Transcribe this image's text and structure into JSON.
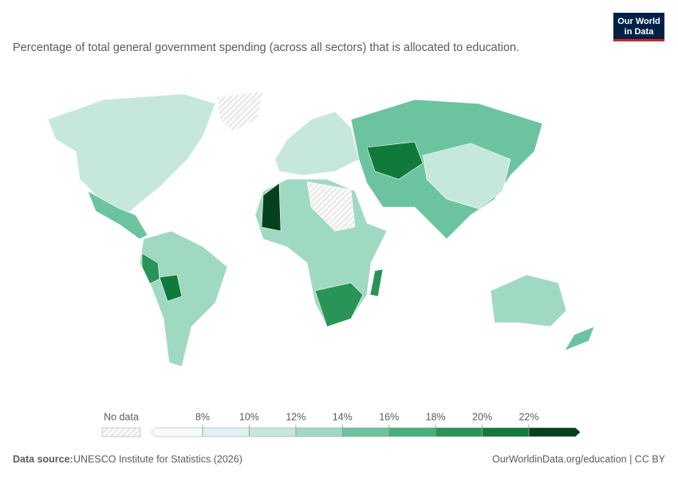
{
  "logo": {
    "line1": "Our World",
    "line2": "in Data"
  },
  "title": "Percentage of total general government spending (across all sectors) that is allocated to education.",
  "legend": {
    "no_data_label": "No data",
    "ticks": [
      {
        "value": 8,
        "label": "8%"
      },
      {
        "value": 10,
        "label": "10%"
      },
      {
        "value": 12,
        "label": "12%"
      },
      {
        "value": 14,
        "label": "14%"
      },
      {
        "value": 16,
        "label": "16%"
      },
      {
        "value": 18,
        "label": "18%"
      },
      {
        "value": 20,
        "label": "20%"
      },
      {
        "value": 22,
        "label": "22%"
      }
    ],
    "colors": [
      "#f7fbfc",
      "#e1eff5",
      "#c6e8dc",
      "#a0d9c1",
      "#6cc3a0",
      "#48ae7c",
      "#2a9358",
      "#117a3a",
      "#06401f"
    ]
  },
  "footer": {
    "source_label": "Data source:",
    "source": "UNESCO Institute for Statistics (2026)",
    "url": "OurWorldinData.org/education | CC BY"
  }
}
